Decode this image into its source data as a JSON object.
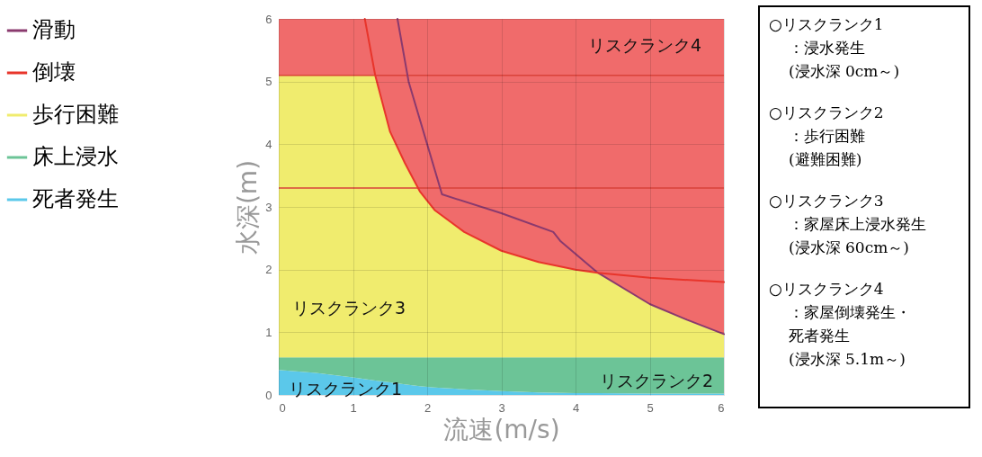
{
  "chart_data": {
    "type": "area",
    "stacked": true,
    "xlabel": "流速(m/s)",
    "ylabel": "水深(m)",
    "xlim": [
      0,
      6
    ],
    "ylim": [
      0,
      6
    ],
    "xticks": [
      0,
      1,
      2,
      3,
      4,
      5,
      6
    ],
    "yticks": [
      0,
      1,
      2,
      3,
      4,
      5,
      6
    ],
    "grid": true,
    "legend": "left",
    "x": [
      0,
      0.5,
      1,
      1.3,
      1.5,
      1.7,
      1.9,
      2.1,
      2.5,
      3,
      3.5,
      4,
      4.3,
      5,
      5.5,
      6
    ],
    "series": [
      {
        "name": "死者発生",
        "color": "#5bc8ea",
        "values": [
          0.4,
          0.35,
          0.28,
          0.23,
          0.2,
          0.17,
          0.14,
          0.12,
          0.09,
          0.06,
          0.04,
          0.03,
          0.03,
          0.02,
          0.02,
          0.02
        ]
      },
      {
        "name": "床上浸水",
        "color": "#6cc497",
        "values": [
          0.2,
          0.25,
          0.32,
          0.37,
          0.4,
          0.43,
          0.46,
          0.48,
          0.51,
          0.54,
          0.56,
          0.57,
          0.57,
          0.58,
          0.58,
          0.58
        ]
      },
      {
        "name": "歩行困難",
        "color": "#f0ec6e",
        "values": [
          4.5,
          4.5,
          4.5,
          4.5,
          3.6,
          3.1,
          2.65,
          2.35,
          2.0,
          1.7,
          1.52,
          1.4,
          1.35,
          0.85,
          0.6,
          0.37
        ]
      },
      {
        "color": "#f06b6b",
        "values": [
          0.9,
          0.9,
          0.9,
          0.9,
          1.8,
          2.3,
          2.75,
          3.05,
          3.4,
          3.7,
          3.88,
          4.0,
          4.05,
          4.55,
          4.8,
          5.03
        ]
      },
      {
        "name": "滑動",
        "type": "line",
        "color": "#8a3a6e",
        "x": [
          1.6,
          1.75,
          2.0,
          2.2,
          3.0,
          3.7,
          3.8,
          4.3,
          5.0,
          5.5,
          6.0
        ],
        "values": [
          6,
          5.0,
          4.0,
          3.2,
          2.9,
          2.6,
          2.45,
          1.95,
          1.45,
          1.2,
          0.97
        ]
      },
      {
        "name": "倒壊",
        "type": "line",
        "color": "#e8352b",
        "x": [
          1.16,
          1.3,
          1.5,
          1.7,
          1.9,
          2.1,
          2.5,
          3.0,
          3.5,
          4.0,
          4.3,
          5.0,
          6.0
        ],
        "values": [
          6,
          5.1,
          4.2,
          3.7,
          3.25,
          2.95,
          2.6,
          2.3,
          2.12,
          2.0,
          1.95,
          1.87,
          1.8
        ]
      }
    ],
    "ref_lines": [
      {
        "axis": "y",
        "value": 5.1,
        "color": "#d9423a"
      },
      {
        "axis": "y",
        "value": 3.3,
        "color": "#d9423a"
      }
    ],
    "annotations": [
      "リスクランク4",
      "リスクランク3",
      "リスクランク2",
      "リスクランク1",
      "○リスクランク1\n：浸水発生\n(浸水深 0cm～)",
      "○リスクランク2\n：歩行困難\n(避難困難)",
      "○リスクランク3\n：家屋床上浸水発生\n(浸水深 60cm～)",
      "○リスクランク4\n：家屋倒壊発生・死者発生\n(浸水深 5.1m～)"
    ]
  }
}
